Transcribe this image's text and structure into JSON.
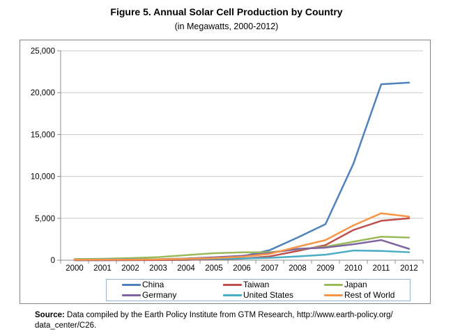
{
  "title": "Figure 5. Annual Solar Cell Production by Country",
  "subtitle": "(in Megawatts, 2000-2012)",
  "source": {
    "label": "Source:",
    "line1": "Data compiled by the Earth Policy Institute from GTM Research, http://www.earth-policy.org/",
    "line2": "data_center/C26."
  },
  "colors": {
    "chart_border": "#848484",
    "axis": "#8c8c8c",
    "gridline": "#c9c9c9",
    "legend_border": "#95b3d7",
    "text": "#000000"
  },
  "chart_data": {
    "type": "line",
    "title": "Figure 5. Annual Solar Cell Production by Country",
    "subtitle": "(in Megawatts, 2000-2012)",
    "xlabel": "",
    "ylabel": "",
    "categories": [
      "2000",
      "2001",
      "2002",
      "2003",
      "2004",
      "2005",
      "2006",
      "2007",
      "2008",
      "2009",
      "2010",
      "2011",
      "2012"
    ],
    "ylim": [
      0,
      25000
    ],
    "ytick_interval": 5000,
    "ytick_values": [
      0,
      5000,
      10000,
      15000,
      20000,
      25000
    ],
    "ytick_labels": [
      "0",
      "5,000",
      "10,000",
      "15,000",
      "20,000",
      "25,000"
    ],
    "grid": true,
    "legend_position": "bottom",
    "series": [
      {
        "name": "China",
        "color": "#4f81bd",
        "values": [
          3,
          5,
          10,
          15,
          35,
          130,
          440,
          1200,
          2700,
          4300,
          11500,
          21000,
          21200
        ]
      },
      {
        "name": "Taiwan",
        "color": "#c0504d",
        "values": [
          2,
          5,
          10,
          20,
          50,
          90,
          180,
          450,
          1100,
          1800,
          3600,
          4700,
          5000
        ]
      },
      {
        "name": "Japan",
        "color": "#9bbb59",
        "values": [
          130,
          170,
          250,
          365,
          600,
          830,
          930,
          950,
          1300,
          1600,
          2200,
          2800,
          2700
        ]
      },
      {
        "name": "Germany",
        "color": "#8064a2",
        "values": [
          25,
          35,
          60,
          110,
          200,
          340,
          520,
          850,
          1350,
          1500,
          1900,
          2400,
          1350
        ]
      },
      {
        "name": "United States",
        "color": "#4bacc6",
        "values": [
          75,
          100,
          120,
          105,
          140,
          160,
          200,
          280,
          450,
          650,
          1150,
          1100,
          950
        ]
      },
      {
        "name": "Rest of World",
        "color": "#f79646",
        "values": [
          55,
          60,
          75,
          95,
          160,
          250,
          400,
          750,
          1600,
          2400,
          4150,
          5600,
          5200
        ]
      }
    ]
  }
}
